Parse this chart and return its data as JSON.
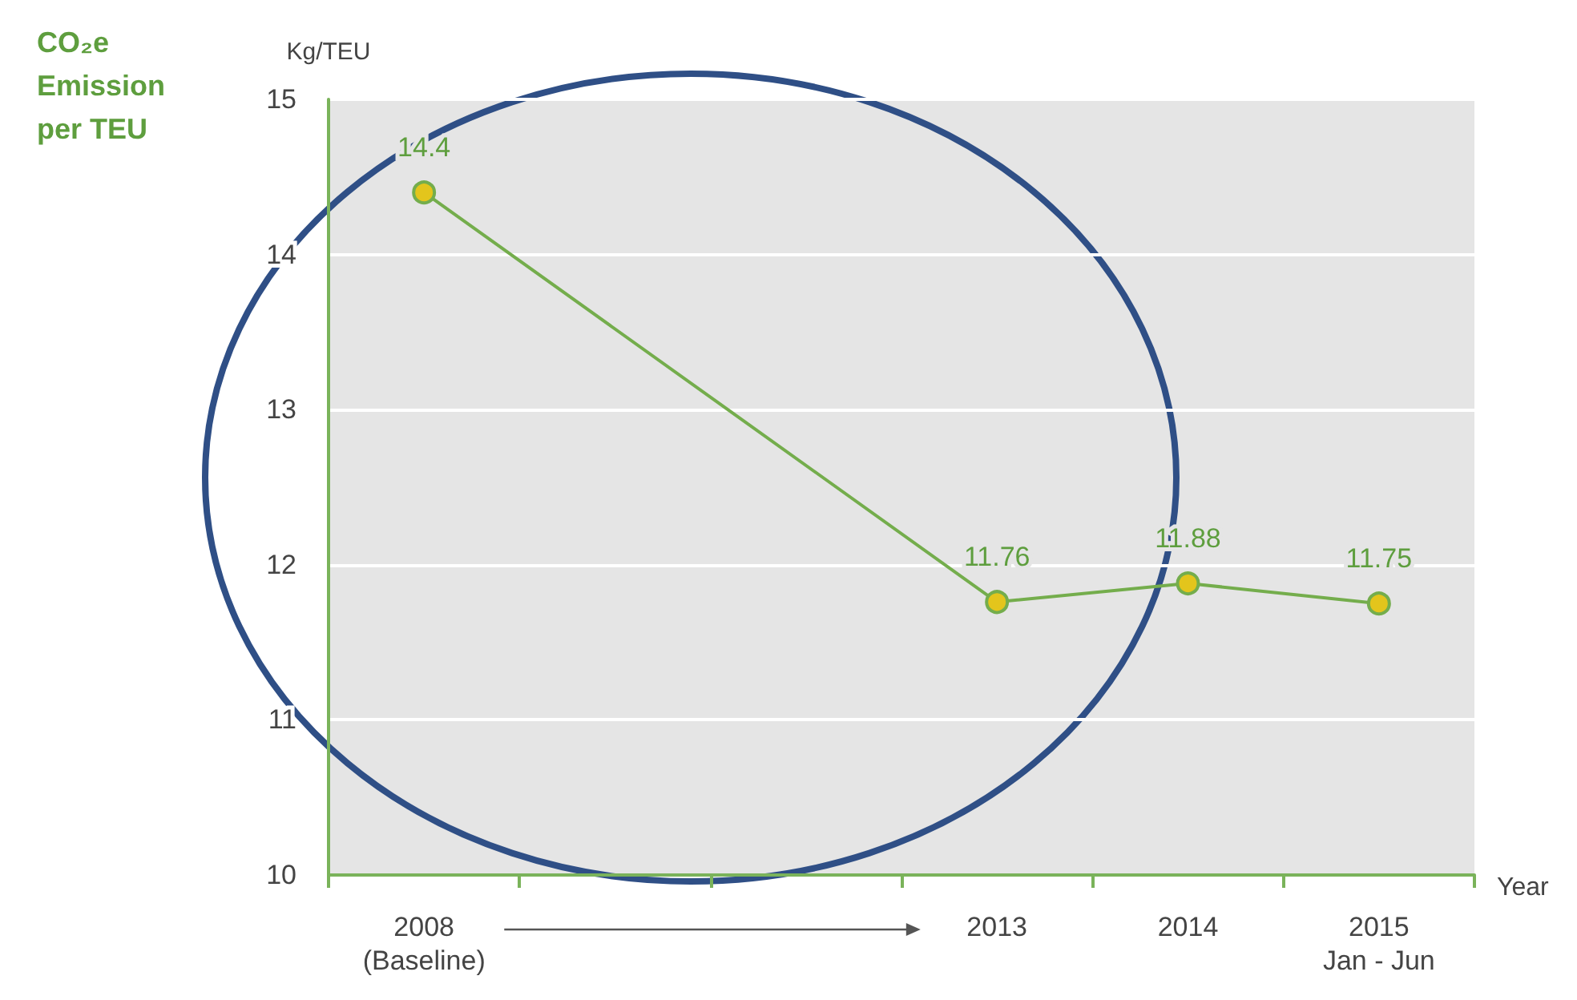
{
  "chart_data": {
    "type": "line",
    "title": "CO₂e\nEmission\nper TEU",
    "ylabel": "Kg/TEU",
    "xlabel": "Year",
    "categories": [
      "2008\n(Baseline)",
      null,
      null,
      "2013",
      "2014",
      "2015\nJan - Jun"
    ],
    "series": [
      {
        "color": "#74ad4c",
        "values": [
          14.4,
          null,
          null,
          11.76,
          11.88,
          11.75
        ]
      }
    ],
    "ylim": [
      10,
      15
    ],
    "yticks": [
      10,
      11,
      12,
      13,
      14,
      15
    ],
    "grid": "y",
    "data_labels": true,
    "marker": "circle",
    "line_style": "solid"
  }
}
